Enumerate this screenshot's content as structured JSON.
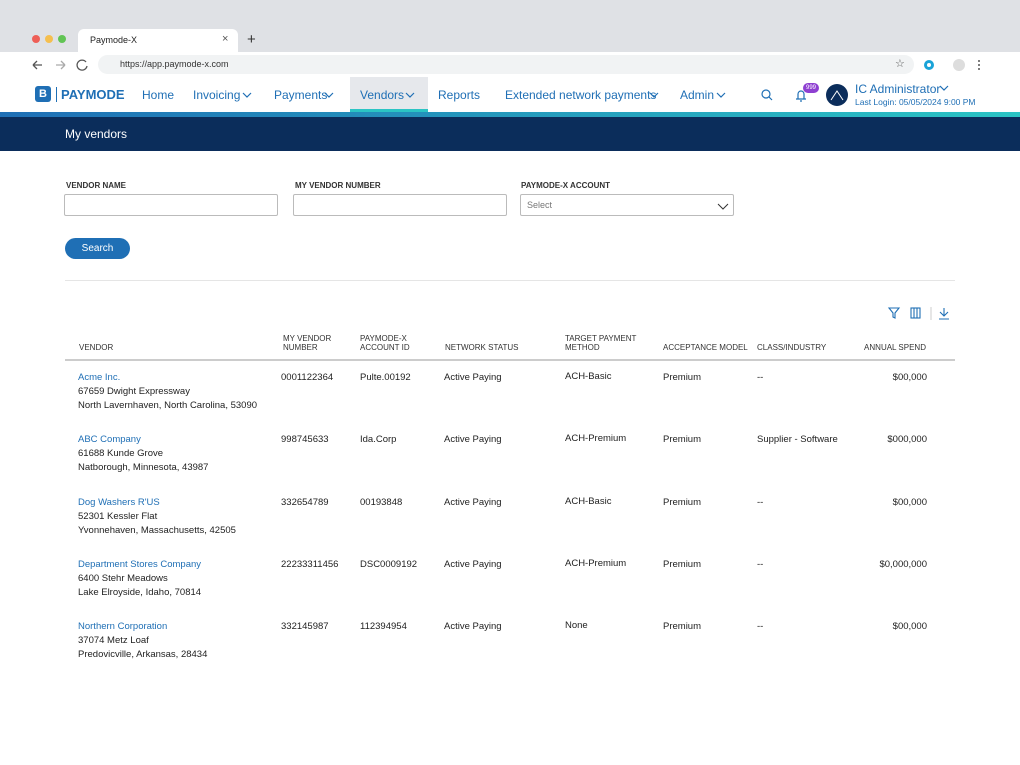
{
  "browser": {
    "tab_title": "Paymode-X",
    "url": "https://app.paymode-x.com"
  },
  "nav": {
    "logo_letter": "B",
    "logo": "PAYMODE",
    "items": [
      "Home",
      "Invoicing",
      "Payments",
      "Vendors",
      "Reports",
      "Extended network payments",
      "Admin"
    ],
    "badge": "999",
    "user": "IC Administrator",
    "last_login": "Last Login: 05/05/2024 9:00 PM"
  },
  "page_title": "My vendors",
  "filters": {
    "vendor_name": "VENDOR NAME",
    "my_vendor_number": "MY VENDOR NUMBER",
    "account": "PAYMODE-X ACCOUNT",
    "account_placeholder": "Select",
    "search": "Search"
  },
  "table": {
    "headers": [
      "VENDOR",
      "MY VENDOR NUMBER",
      "PAYMODE-X ACCOUNT ID",
      "NETWORK STATUS",
      "TARGET PAYMENT METHOD",
      "ACCEPTANCE MODEL",
      "CLASS/INDUSTRY",
      "ANNUAL SPEND"
    ],
    "rows": [
      [
        "Acme Inc.",
        "67659 Dwight Expressway",
        "North Lavernhaven, North Carolina, 53090",
        "0001122364",
        "Pulte.00192",
        "Active Paying",
        "ACH-Basic",
        "Premium",
        "--",
        "$00,000"
      ],
      [
        "ABC Company",
        "61688 Kunde Grove",
        "Natborough, Minnesota, 43987",
        "998745633",
        "Ida.Corp",
        "Active Paying",
        "ACH-Premium",
        "Premium",
        "Supplier - Software",
        "$000,000"
      ],
      [
        "Dog Washers R'US",
        "52301 Kessler Flat",
        "Yvonnehaven, Massachusetts, 42505",
        "332654789",
        "00193848",
        "Active Paying",
        "ACH-Basic",
        "Premium",
        "--",
        "$00,000"
      ],
      [
        "Department Stores Company",
        "6400 Stehr Meadows",
        "Lake Elroyside, Idaho, 70814",
        "22233311456",
        "DSC0009192",
        "Active Paying",
        "ACH-Premium",
        "Premium",
        "--",
        "$0,000,000"
      ],
      [
        "Northern Corporation",
        "37074 Metz Loaf",
        "Predovicville, Arkansas, 28434",
        "332145987",
        "112394954",
        "Active Paying",
        "None",
        "Premium",
        "--",
        "$00,000"
      ]
    ]
  }
}
